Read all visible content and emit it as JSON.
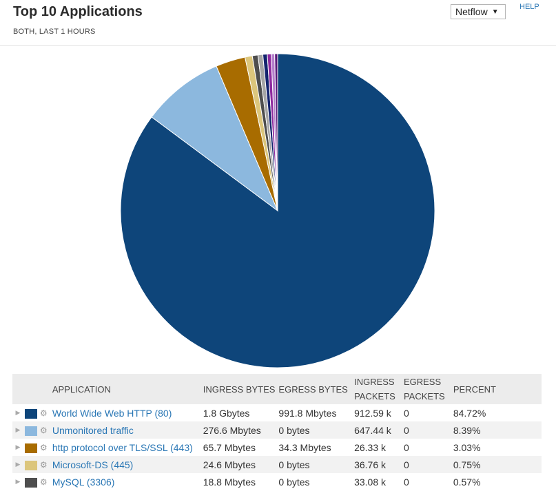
{
  "header": {
    "title": "Top 10 Applications",
    "subtitle": "BOTH, LAST 1 HOURS",
    "source_select": "Netflow",
    "help": "HELP"
  },
  "chart_data": {
    "type": "pie",
    "title": "",
    "slices": [
      {
        "label": "World Wide Web HTTP (80)",
        "value": 84.72,
        "color": "#0e457a"
      },
      {
        "label": "Unmonitored traffic",
        "value": 8.39,
        "color": "#8cb8de"
      },
      {
        "label": "http protocol over TLS/SSL (443)",
        "value": 3.03,
        "color": "#a86c00"
      },
      {
        "label": "Microsoft-DS (445)",
        "value": 0.75,
        "color": "#dcc67c"
      },
      {
        "label": "MySQL (3306)",
        "value": 0.57,
        "color": "#4e4e4e"
      },
      {
        "label": "",
        "value": 0.5,
        "color": "#a5a5a5"
      },
      {
        "label": "",
        "value": 0.45,
        "color": "#14246e"
      },
      {
        "label": "",
        "value": 0.4,
        "color": "#8e2a9e"
      },
      {
        "label": "",
        "value": 0.35,
        "color": "#b47ecb"
      },
      {
        "label": "",
        "value": 0.3,
        "color": "#5c1a7a"
      }
    ]
  },
  "table": {
    "columns": [
      "APPLICATION",
      "INGRESS BYTES",
      "EGRESS BYTES",
      "INGRESS PACKETS",
      "EGRESS PACKETS",
      "PERCENT"
    ],
    "rows": [
      {
        "color": "#0e457a",
        "application": "World Wide Web HTTP (80)",
        "ingress_bytes": "1.8 Gbytes",
        "egress_bytes": "991.8 Mbytes",
        "ingress_packets": "912.59 k",
        "egress_packets": "0",
        "percent": "84.72%"
      },
      {
        "color": "#8cb8de",
        "application": "Unmonitored traffic",
        "ingress_bytes": "276.6 Mbytes",
        "egress_bytes": "0 bytes",
        "ingress_packets": "647.44 k",
        "egress_packets": "0",
        "percent": "8.39%"
      },
      {
        "color": "#a86c00",
        "application": "http protocol over TLS/SSL (443)",
        "ingress_bytes": "65.7 Mbytes",
        "egress_bytes": "34.3 Mbytes",
        "ingress_packets": "26.33 k",
        "egress_packets": "0",
        "percent": "3.03%"
      },
      {
        "color": "#dcc67c",
        "application": "Microsoft-DS (445)",
        "ingress_bytes": "24.6 Mbytes",
        "egress_bytes": "0 bytes",
        "ingress_packets": "36.76 k",
        "egress_packets": "0",
        "percent": "0.75%"
      },
      {
        "color": "#4e4e4e",
        "application": "MySQL (3306)",
        "ingress_bytes": "18.8 Mbytes",
        "egress_bytes": "0 bytes",
        "ingress_packets": "33.08 k",
        "egress_packets": "0",
        "percent": "0.57%"
      }
    ]
  }
}
